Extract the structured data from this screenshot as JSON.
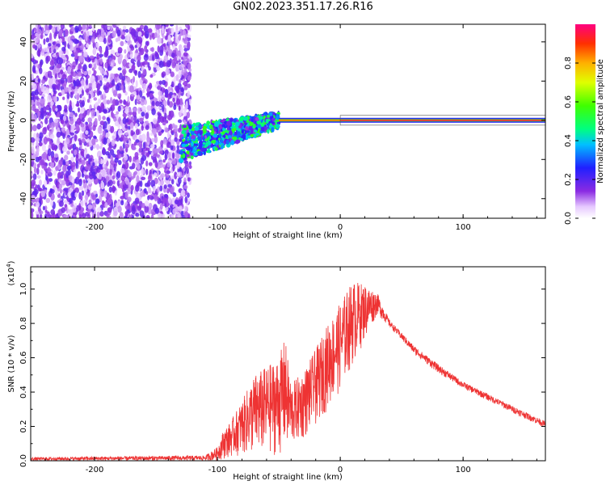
{
  "title": "GN02.2023.351.17.26.R16",
  "chart_data": [
    {
      "type": "heatmap",
      "xlabel": "Height of straight line (km)",
      "ylabel": "Frequency (Hz)",
      "xlim": [
        -252,
        167
      ],
      "ylim": [
        -50,
        49
      ],
      "xticks": [
        -200,
        -100,
        0,
        100
      ],
      "yticks": [
        -40,
        -20,
        0,
        20,
        40
      ],
      "colorbar": {
        "label": "Normalized spectral amplitude",
        "ticks": [
          0.0,
          0.2,
          0.4,
          0.6,
          0.8
        ],
        "range": [
          0,
          1
        ]
      },
      "features": [
        {
          "x_range": [
            -252,
            -122
          ],
          "kind": "broadband noise",
          "amplitude": 0.15
        },
        {
          "x_range": [
            -130,
            -50
          ],
          "kind": "converging band",
          "center_freq": [
            -12,
            0
          ],
          "amplitude": 0.45
        },
        {
          "x_range": [
            -50,
            0
          ],
          "kind": "narrow line",
          "center_freq": 0,
          "amplitude": 0.85
        },
        {
          "x_range": [
            0,
            167
          ],
          "kind": "narrow line",
          "center_freq": 0,
          "amplitude": 0.95
        }
      ]
    },
    {
      "type": "line",
      "xlabel": "Height of straight line (km)",
      "ylabel": "SNR (10 * v/v)",
      "y_multiplier": "(x10",
      "y_multiplier_exp": "4",
      "xlim": [
        -252,
        167
      ],
      "ylim": [
        0,
        1.13
      ],
      "xticks": [
        -200,
        -100,
        0,
        100
      ],
      "yticks": [
        0.0,
        0.2,
        0.4,
        0.6,
        0.8,
        1.0
      ],
      "color": "#ee3333",
      "envelope": {
        "x": [
          -252,
          -110,
          -100,
          -95,
          -90,
          -80,
          -70,
          -60,
          -50,
          -45,
          -40,
          -30,
          -20,
          -10,
          0,
          10,
          20,
          30,
          40,
          60,
          80,
          100,
          120,
          140,
          167
        ],
        "upper": [
          0.02,
          0.03,
          0.08,
          0.18,
          0.22,
          0.35,
          0.5,
          0.55,
          0.6,
          0.72,
          0.45,
          0.52,
          0.65,
          0.8,
          0.92,
          1.05,
          1.03,
          0.98,
          0.82,
          0.67,
          0.56,
          0.46,
          0.39,
          0.32,
          0.23
        ],
        "lower": [
          0.0,
          0.0,
          0.0,
          0.01,
          0.02,
          0.03,
          0.03,
          0.03,
          0.03,
          0.04,
          0.08,
          0.12,
          0.2,
          0.3,
          0.4,
          0.55,
          0.7,
          0.85,
          0.78,
          0.62,
          0.51,
          0.42,
          0.35,
          0.28,
          0.19
        ]
      }
    }
  ]
}
